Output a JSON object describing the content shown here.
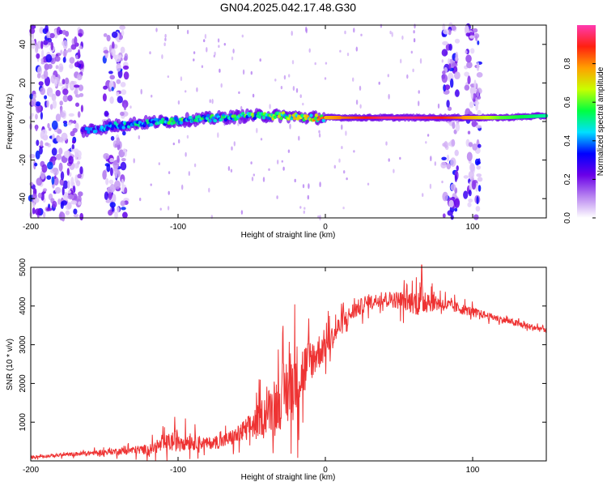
{
  "title": "GN04.2025.042.17.48.G30",
  "chart_data": [
    {
      "type": "heatmap",
      "xlabel": "Height of straight line (km)",
      "ylabel": "Frequency (Hz)",
      "xlim": [
        -200,
        150
      ],
      "ylim": [
        -50,
        50
      ],
      "xticks": [
        -200,
        -100,
        0,
        100
      ],
      "yticks": [
        -40,
        -20,
        0,
        20,
        40
      ],
      "colorbar": {
        "label": "Normalized spectral amplitude",
        "range": [
          0,
          1
        ],
        "ticks": [
          "0.0",
          "0.2",
          "0.4",
          "0.6",
          "0.8"
        ],
        "colors": [
          "#ffffff",
          "#b884f0",
          "#6a00e8",
          "#0000ff",
          "#00e0ff",
          "#00ff40",
          "#c8ff00",
          "#ffa000",
          "#ff2010",
          "#ff3ab0"
        ]
      },
      "ridge": {
        "x": [
          -165,
          -150,
          -130,
          -110,
          -90,
          -70,
          -50,
          -30,
          -10,
          0,
          20,
          40,
          60,
          78,
          100,
          120,
          150
        ],
        "y": [
          -5,
          -3,
          -1,
          0,
          1,
          2,
          3,
          3,
          2,
          2,
          2,
          2,
          2,
          2,
          2,
          2,
          3
        ],
        "strength": [
          0.35,
          0.4,
          0.45,
          0.5,
          0.55,
          0.5,
          0.55,
          0.6,
          0.7,
          0.75,
          0.85,
          0.95,
          0.95,
          0.9,
          0.75,
          0.6,
          0.5
        ]
      },
      "noise_bands": [
        [
          -200,
          -165
        ],
        [
          -150,
          -135
        ],
        [
          80,
          90
        ],
        [
          95,
          105
        ]
      ]
    },
    {
      "type": "line",
      "xlabel": "Height of straight line (km)",
      "ylabel": "SNR (10 * v/v)",
      "xlim": [
        -200,
        150
      ],
      "ylim": [
        0,
        5000
      ],
      "xticks": [
        -200,
        -100,
        0,
        100
      ],
      "yticks": [
        1000,
        2000,
        3000,
        4000,
        5000
      ],
      "color": "#ee3333",
      "series": [
        {
          "x": [
            -200,
            -180,
            -160,
            -140,
            -120,
            -110,
            -100,
            -90,
            -80,
            -70,
            -60,
            -50,
            -40,
            -30,
            -25,
            -20,
            -15,
            -10,
            -5,
            0,
            5,
            10,
            15,
            20,
            30,
            40,
            50,
            60,
            65,
            70,
            80,
            90,
            100,
            110,
            120,
            130,
            140,
            150
          ],
          "y": [
            100,
            150,
            200,
            250,
            300,
            420,
            550,
            500,
            450,
            500,
            650,
            900,
            1250,
            1600,
            1900,
            2100,
            2300,
            2600,
            2800,
            3000,
            3200,
            3500,
            3700,
            3900,
            4100,
            4200,
            4150,
            4100,
            4200,
            4150,
            4050,
            3950,
            3850,
            3750,
            3650,
            3550,
            3450,
            3400
          ],
          "noise": [
            60,
            70,
            100,
            150,
            220,
            350,
            500,
            350,
            250,
            300,
            400,
            600,
            900,
            1300,
            1700,
            1600,
            1300,
            900,
            800,
            700,
            500,
            500,
            400,
            400,
            300,
            300,
            400,
            500,
            900,
            500,
            300,
            250,
            200,
            150,
            150,
            150,
            150,
            150
          ]
        }
      ]
    }
  ]
}
